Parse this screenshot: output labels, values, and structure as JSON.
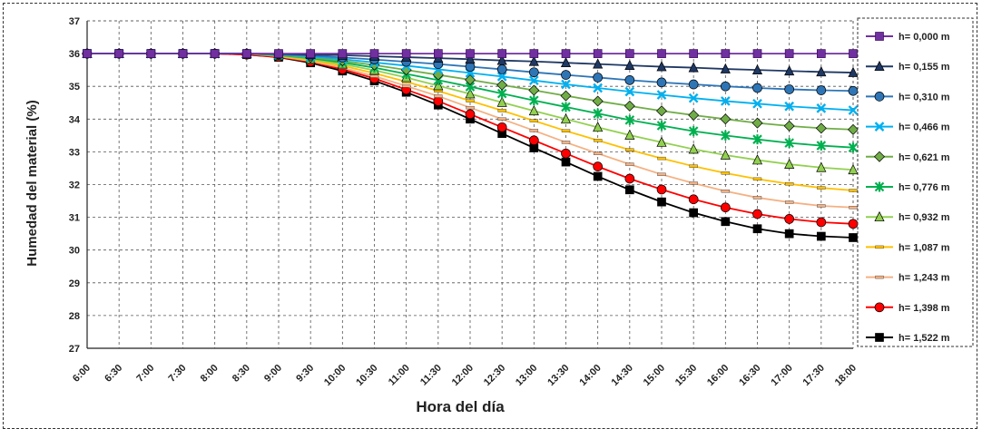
{
  "chart_data": {
    "type": "line",
    "title": "",
    "xlabel": "Hora del día",
    "ylabel": "Humedad del material (%)",
    "categories": [
      "6:00",
      "6:30",
      "7:00",
      "7:30",
      "8:00",
      "8:30",
      "9:00",
      "9:30",
      "10:00",
      "10:30",
      "11:00",
      "11:30",
      "12:00",
      "12:30",
      "13:00",
      "13:30",
      "14:00",
      "14:30",
      "15:00",
      "15:30",
      "16:00",
      "16:30",
      "17:00",
      "17:30",
      "18:00"
    ],
    "yticks": [
      27,
      28,
      29,
      30,
      31,
      32,
      33,
      34,
      35,
      36,
      37
    ],
    "ylim": [
      27,
      37
    ],
    "grid": true,
    "legend_position": "right",
    "series": [
      {
        "name": "h= 0,000 m",
        "color": "#7030A0",
        "marker": "square-open",
        "values": [
          36,
          36,
          36,
          36,
          36,
          36,
          36,
          36,
          36,
          36,
          36,
          36,
          36,
          36,
          36,
          36,
          36,
          36,
          36,
          36,
          36,
          36,
          36,
          36,
          36
        ]
      },
      {
        "name": "h= 0,155 m",
        "color": "#1F3864",
        "marker": "triangle",
        "values": [
          36,
          36,
          36,
          36,
          36,
          36,
          35.99,
          35.97,
          35.95,
          35.92,
          35.89,
          35.86,
          35.83,
          35.79,
          35.76,
          35.72,
          35.68,
          35.64,
          35.6,
          35.57,
          35.53,
          35.5,
          35.47,
          35.44,
          35.42
        ]
      },
      {
        "name": "h= 0,310 m",
        "color": "#2E75B6",
        "marker": "circle",
        "values": [
          36,
          36,
          36,
          36,
          36,
          36,
          35.98,
          35.94,
          35.88,
          35.82,
          35.75,
          35.68,
          35.6,
          35.52,
          35.43,
          35.35,
          35.27,
          35.19,
          35.12,
          35.06,
          35.0,
          34.95,
          34.91,
          34.88,
          34.86
        ]
      },
      {
        "name": "h= 0,466 m",
        "color": "#00B0F0",
        "marker": "x",
        "values": [
          36,
          36,
          36,
          36,
          36,
          36,
          35.97,
          35.91,
          35.83,
          35.73,
          35.63,
          35.52,
          35.41,
          35.3,
          35.18,
          35.06,
          34.95,
          34.84,
          34.74,
          34.64,
          34.55,
          34.47,
          34.39,
          34.33,
          34.27
        ]
      },
      {
        "name": "h= 0,621 m",
        "color": "#70AD47",
        "marker": "diamond",
        "values": [
          36,
          36,
          36,
          36,
          36,
          36,
          35.96,
          35.88,
          35.78,
          35.65,
          35.5,
          35.35,
          35.2,
          35.04,
          34.88,
          34.71,
          34.55,
          34.4,
          34.25,
          34.12,
          34.0,
          33.88,
          33.79,
          33.72,
          33.68
        ]
      },
      {
        "name": "h= 0,776 m",
        "color": "#00B050",
        "marker": "star",
        "values": [
          36,
          36,
          36,
          36,
          36,
          36,
          35.95,
          35.86,
          35.73,
          35.57,
          35.38,
          35.19,
          34.99,
          34.78,
          34.57,
          34.37,
          34.17,
          33.97,
          33.8,
          33.63,
          33.5,
          33.38,
          33.27,
          33.19,
          33.13
        ]
      },
      {
        "name": "h= 0,932 m",
        "color": "#92D050",
        "marker": "triangle-open",
        "values": [
          36,
          36,
          36,
          36,
          36,
          36,
          35.94,
          35.83,
          35.68,
          35.49,
          35.27,
          35.02,
          34.77,
          34.51,
          34.25,
          34.0,
          33.75,
          33.51,
          33.29,
          33.08,
          32.9,
          32.75,
          32.62,
          32.52,
          32.45
        ]
      },
      {
        "name": "h= 1,087 m",
        "color": "#FFC000",
        "marker": "dash",
        "values": [
          36,
          36,
          36,
          36,
          36,
          36,
          35.93,
          35.8,
          35.63,
          35.4,
          35.14,
          34.86,
          34.56,
          34.26,
          33.95,
          33.64,
          33.35,
          33.06,
          32.8,
          32.56,
          32.35,
          32.17,
          32.02,
          31.9,
          31.82
        ]
      },
      {
        "name": "h= 1,243 m",
        "color": "#F4B183",
        "marker": "dash",
        "values": [
          36,
          36,
          36,
          36,
          36,
          36,
          35.92,
          35.77,
          35.57,
          35.31,
          35.01,
          34.7,
          34.35,
          34.0,
          33.65,
          33.29,
          32.95,
          32.62,
          32.31,
          32.04,
          31.8,
          31.6,
          31.46,
          31.35,
          31.3
        ]
      },
      {
        "name": "h= 1,398 m",
        "color": "#FF0000",
        "marker": "circle",
        "values": [
          36,
          36,
          36,
          36,
          36,
          35.97,
          35.9,
          35.75,
          35.52,
          35.24,
          34.9,
          34.55,
          34.15,
          33.75,
          33.35,
          32.95,
          32.55,
          32.18,
          31.85,
          31.55,
          31.3,
          31.1,
          30.95,
          30.85,
          30.8
        ]
      },
      {
        "name": "h= 1,522 m",
        "color": "#000000",
        "marker": "square",
        "values": [
          36,
          36,
          36,
          36,
          36,
          35.97,
          35.89,
          35.72,
          35.47,
          35.17,
          34.82,
          34.43,
          34.0,
          33.56,
          33.12,
          32.69,
          32.25,
          31.84,
          31.47,
          31.14,
          30.87,
          30.65,
          30.5,
          30.42,
          30.38
        ]
      }
    ]
  }
}
